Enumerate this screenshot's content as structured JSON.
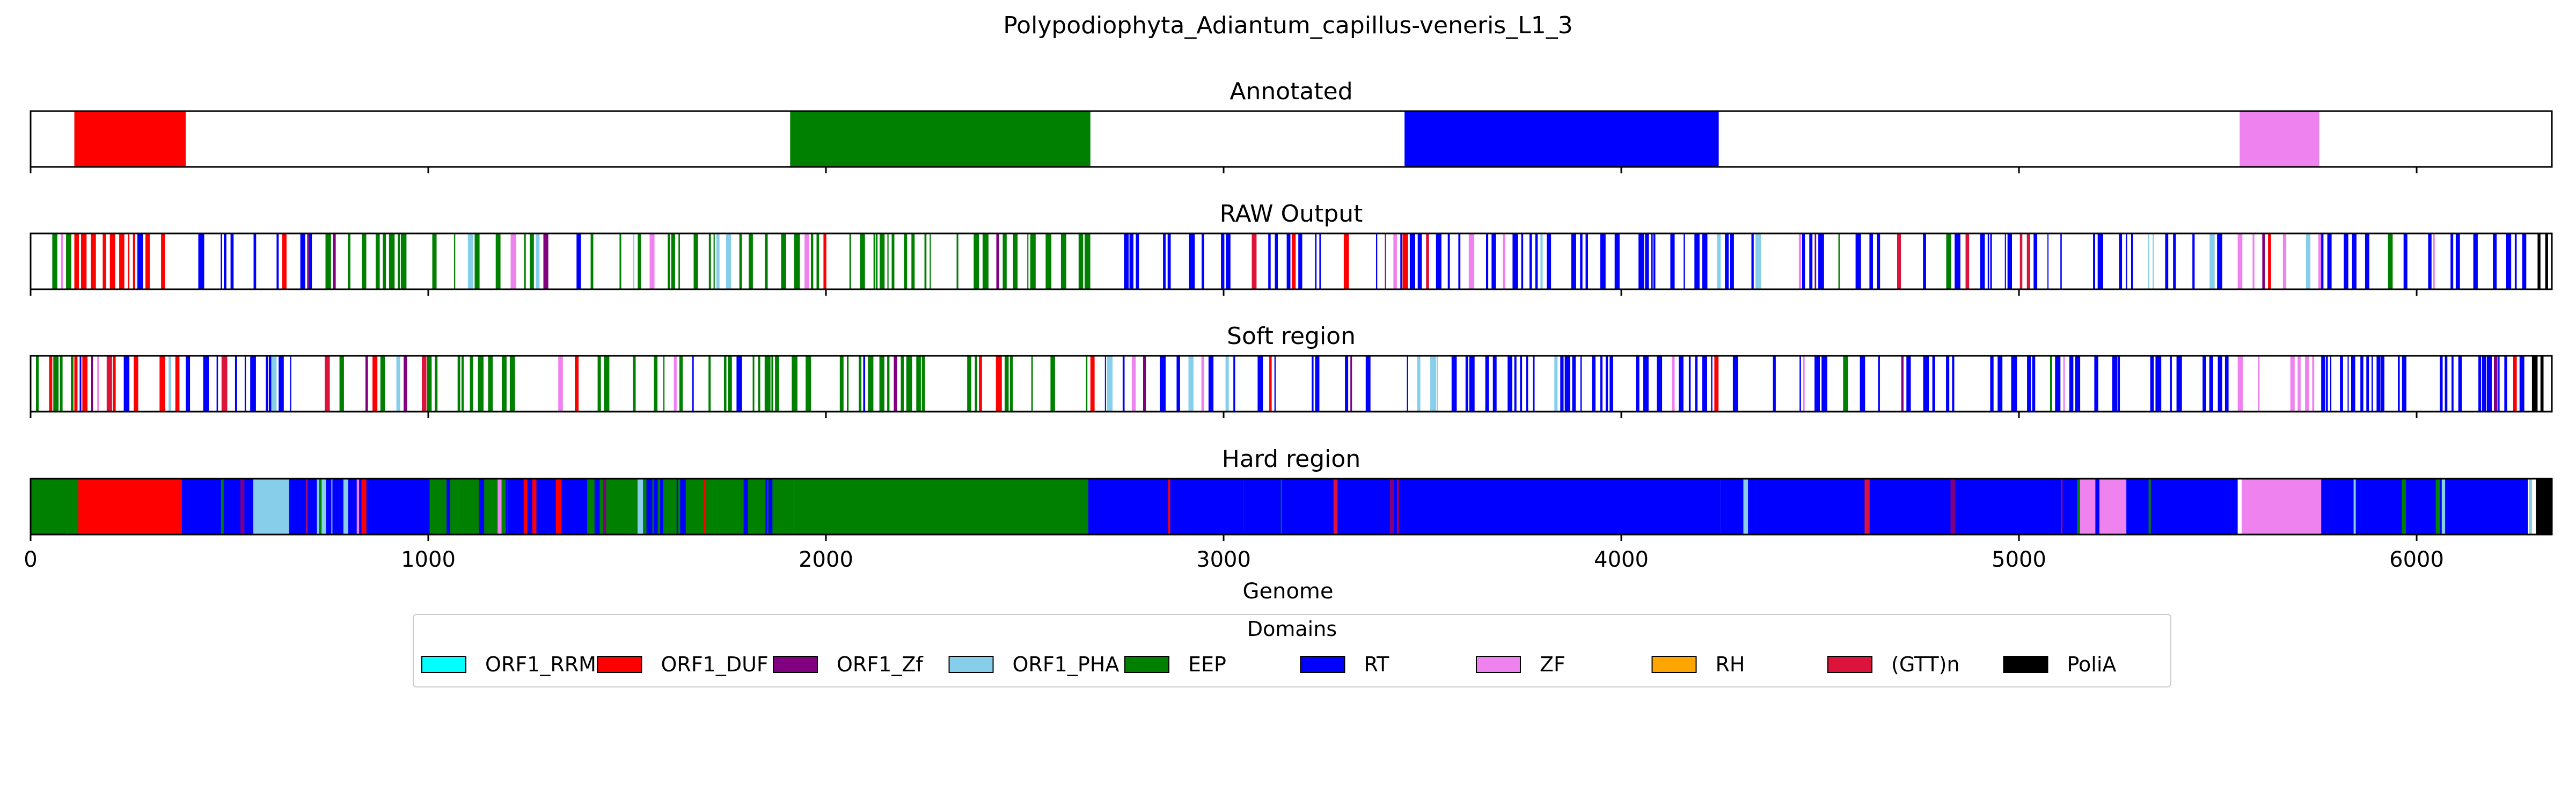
{
  "figure": {
    "suptitle": "Polypodiophyta_Adiantum_capillus-veneris_L1_3"
  },
  "chart_data": {
    "type": "track",
    "xlabel": "Genome",
    "xlim": [
      0,
      6340
    ],
    "xticks": [
      0,
      1000,
      2000,
      3000,
      4000,
      5000,
      6000
    ],
    "xtick_labels": [
      "0",
      "1000",
      "2000",
      "3000",
      "4000",
      "5000",
      "6000"
    ],
    "legend": {
      "title": "Domains",
      "placement": "bottom-center",
      "entries": [
        {
          "name": "ORF1_RRM",
          "color": "#00FFFF"
        },
        {
          "name": "ORF1_DUF",
          "color": "#FF0000"
        },
        {
          "name": "ORF1_Zf",
          "color": "#800080"
        },
        {
          "name": "ORF1_PHA",
          "color": "#87CEEB"
        },
        {
          "name": "EEP",
          "color": "#008000"
        },
        {
          "name": "RT",
          "color": "#0000FF"
        },
        {
          "name": "ZF",
          "color": "#EE82EE"
        },
        {
          "name": "RH",
          "color": "#FFA500"
        },
        {
          "name": "(GTT)n",
          "color": "#DC143C"
        },
        {
          "name": "PoliA",
          "color": "#000000"
        }
      ]
    },
    "tracks": [
      {
        "title": "Annotated",
        "mode": "solid",
        "segments": [
          {
            "domain": "ORF1_DUF",
            "start": 110,
            "end": 390
          },
          {
            "domain": "EEP",
            "start": 1910,
            "end": 2665
          },
          {
            "domain": "RT",
            "start": 3455,
            "end": 4245
          },
          {
            "domain": "ZF",
            "start": 5555,
            "end": 5755
          }
        ]
      },
      {
        "title": "RAW Output",
        "mode": "stripes",
        "regions": [
          {
            "domain": "EEP",
            "start": 0,
            "end": 110,
            "density": 0.55
          },
          {
            "domain": "ORF1_DUF",
            "start": 110,
            "end": 390,
            "density": 0.6
          },
          {
            "domain": "RT",
            "start": 390,
            "end": 700,
            "density": 0.5
          },
          {
            "domain": "EEP",
            "start": 700,
            "end": 1900,
            "density": 0.45
          },
          {
            "domain": "EEP",
            "start": 1900,
            "end": 2665,
            "density": 0.5
          },
          {
            "domain": "RT",
            "start": 2665,
            "end": 3450,
            "density": 0.45
          },
          {
            "domain": "RT",
            "start": 3450,
            "end": 4250,
            "density": 0.6
          },
          {
            "domain": "RT",
            "start": 4250,
            "end": 5550,
            "density": 0.45
          },
          {
            "domain": "ZF",
            "start": 5550,
            "end": 5760,
            "density": 0.5
          },
          {
            "domain": "RT",
            "start": 5760,
            "end": 6290,
            "density": 0.55
          },
          {
            "domain": "PoliA",
            "start": 6290,
            "end": 6340,
            "density": 0.6
          }
        ]
      },
      {
        "title": "Soft region",
        "mode": "stripes",
        "regions": [
          {
            "domain": "EEP",
            "start": 0,
            "end": 110,
            "density": 0.55
          },
          {
            "domain": "ORF1_DUF",
            "start": 110,
            "end": 390,
            "density": 0.6
          },
          {
            "domain": "RT",
            "start": 390,
            "end": 700,
            "density": 0.5
          },
          {
            "domain": "EEP",
            "start": 700,
            "end": 1900,
            "density": 0.45
          },
          {
            "domain": "EEP",
            "start": 1900,
            "end": 2665,
            "density": 0.5
          },
          {
            "domain": "RT",
            "start": 2665,
            "end": 3450,
            "density": 0.45
          },
          {
            "domain": "RT",
            "start": 3450,
            "end": 4250,
            "density": 0.6
          },
          {
            "domain": "RT",
            "start": 4250,
            "end": 5550,
            "density": 0.45
          },
          {
            "domain": "ZF",
            "start": 5550,
            "end": 5760,
            "density": 0.5
          },
          {
            "domain": "RT",
            "start": 5760,
            "end": 6290,
            "density": 0.55
          },
          {
            "domain": "PoliA",
            "start": 6290,
            "end": 6340,
            "density": 0.6
          }
        ]
      },
      {
        "title": "Hard region",
        "mode": "solid",
        "segments": [
          {
            "domain": "EEP",
            "start": 0,
            "end": 120
          },
          {
            "domain": "ORF1_DUF",
            "start": 120,
            "end": 380
          },
          {
            "domain": "RT",
            "start": 380,
            "end": 560
          },
          {
            "domain": "ORF1_PHA",
            "start": 560,
            "end": 650
          },
          {
            "domain": "RT",
            "start": 650,
            "end": 720
          },
          {
            "domain": "ORF1_PHA",
            "start": 720,
            "end": 760
          },
          {
            "domain": "RT",
            "start": 760,
            "end": 1000
          },
          {
            "domain": "EEP",
            "start": 1000,
            "end": 1200
          },
          {
            "domain": "RT",
            "start": 1200,
            "end": 1400
          },
          {
            "domain": "EEP",
            "start": 1400,
            "end": 1920
          },
          {
            "domain": "EEP",
            "start": 1920,
            "end": 2660
          },
          {
            "domain": "RT",
            "start": 2660,
            "end": 3050
          },
          {
            "domain": "RT",
            "start": 3050,
            "end": 3420
          },
          {
            "domain": "RT",
            "start": 3420,
            "end": 4250
          },
          {
            "domain": "RT",
            "start": 4250,
            "end": 5150
          },
          {
            "domain": "ZF",
            "start": 5150,
            "end": 5270
          },
          {
            "domain": "RT",
            "start": 5270,
            "end": 5550
          },
          {
            "domain": "ZF",
            "start": 5560,
            "end": 5760
          },
          {
            "domain": "RT",
            "start": 5760,
            "end": 6280
          },
          {
            "domain": "PoliA",
            "start": 6300,
            "end": 6340
          }
        ],
        "stripe_overlays": [
          {
            "domain": "RT",
            "start": 380,
            "end": 1900,
            "density": 0.35
          },
          {
            "domain": "RT",
            "start": 2660,
            "end": 3440,
            "density": 0.4
          },
          {
            "domain": "RT",
            "start": 4250,
            "end": 5550,
            "density": 0.35
          },
          {
            "domain": "RT",
            "start": 5760,
            "end": 6290,
            "density": 0.4
          }
        ]
      }
    ]
  }
}
